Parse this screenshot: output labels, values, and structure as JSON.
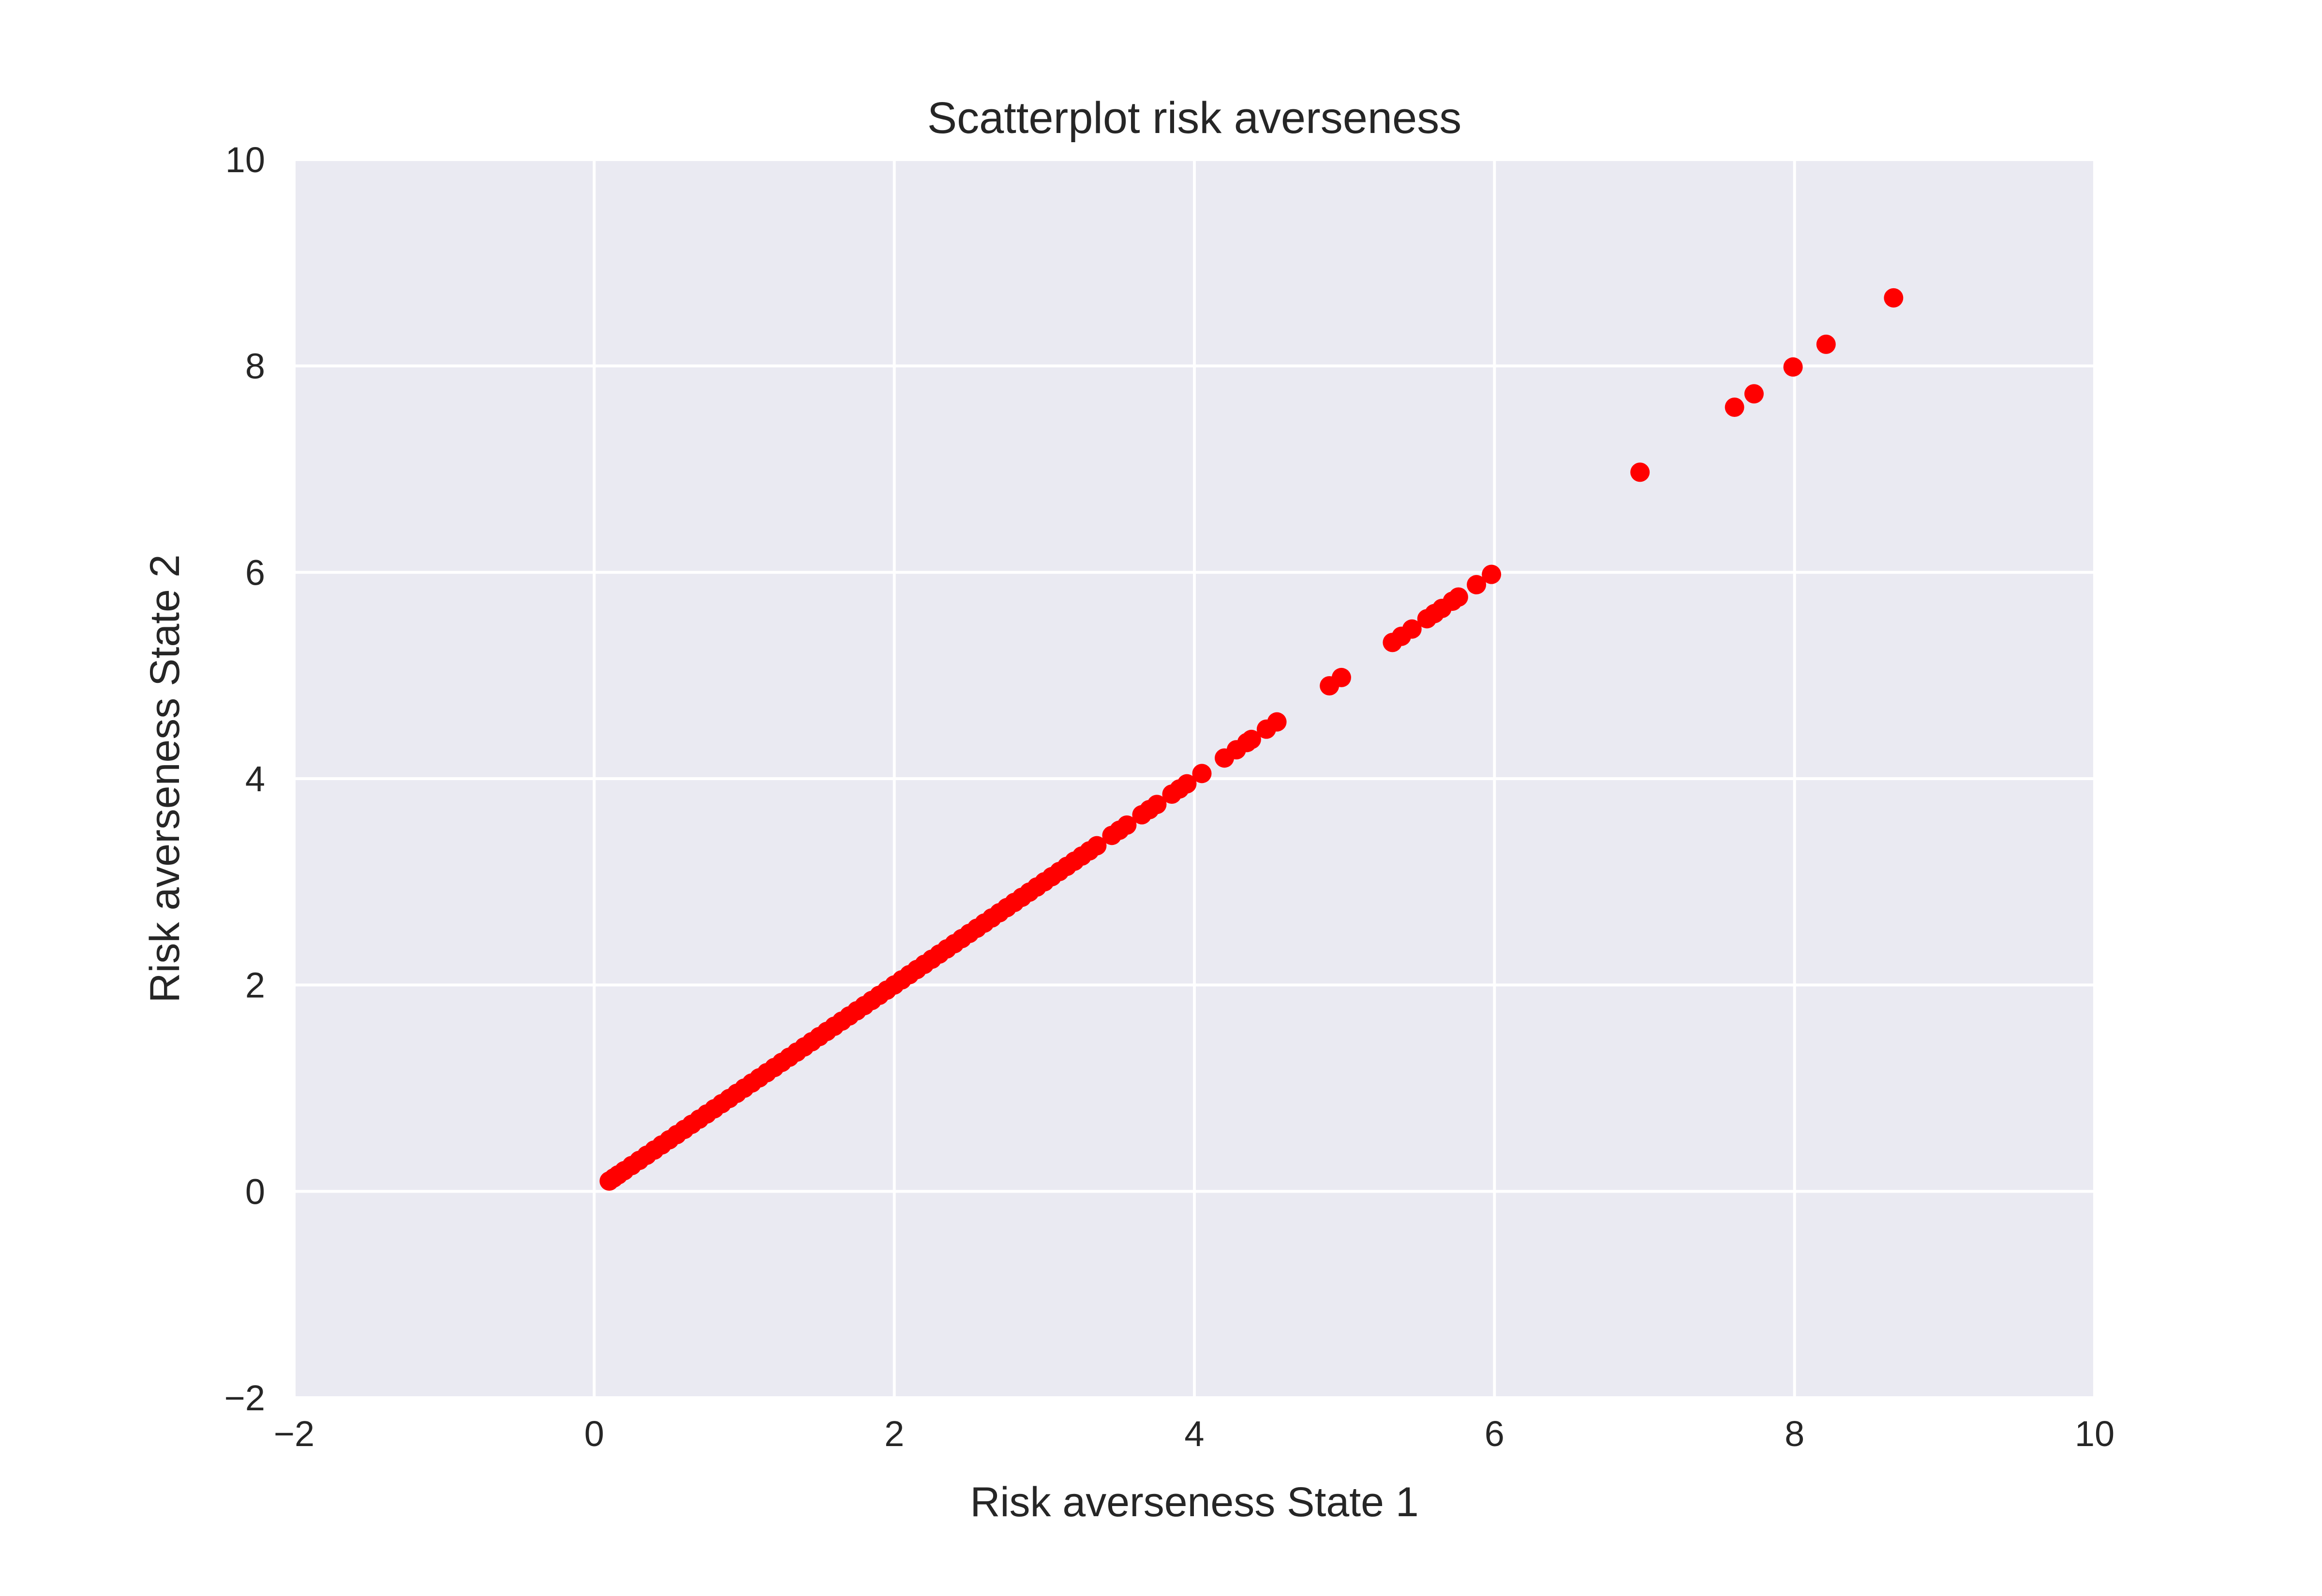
{
  "chart_data": {
    "type": "scatter",
    "title": "Scatterplot risk averseness",
    "xlabel": "Risk averseness State 1",
    "ylabel": "Risk averseness State 2",
    "xlim": [
      -2,
      10
    ],
    "ylim": [
      -2,
      10
    ],
    "xticks": [
      -2,
      0,
      2,
      4,
      6,
      8,
      10
    ],
    "yticks": [
      -2,
      0,
      2,
      4,
      6,
      8,
      10
    ],
    "xtick_labels": [
      "−2",
      "0",
      "2",
      "4",
      "6",
      "8",
      "10"
    ],
    "ytick_labels": [
      "−2",
      "0",
      "2",
      "4",
      "6",
      "8",
      "10"
    ],
    "grid": true,
    "background": "#EAEAF2",
    "grid_color": "#FFFFFF",
    "marker_color": "#FF0000",
    "series": [
      {
        "points": [
          [
            0.1,
            0.1
          ],
          [
            0.13,
            0.13
          ],
          [
            0.16,
            0.16
          ],
          [
            0.2,
            0.2
          ],
          [
            0.25,
            0.25
          ],
          [
            0.3,
            0.3
          ],
          [
            0.35,
            0.35
          ],
          [
            0.4,
            0.4
          ],
          [
            0.45,
            0.45
          ],
          [
            0.5,
            0.5
          ],
          [
            0.55,
            0.55
          ],
          [
            0.6,
            0.6
          ],
          [
            0.65,
            0.65
          ],
          [
            0.7,
            0.7
          ],
          [
            0.75,
            0.75
          ],
          [
            0.8,
            0.8
          ],
          [
            0.85,
            0.85
          ],
          [
            0.9,
            0.9
          ],
          [
            0.95,
            0.95
          ],
          [
            1.0,
            1.0
          ],
          [
            1.05,
            1.05
          ],
          [
            1.1,
            1.1
          ],
          [
            1.15,
            1.15
          ],
          [
            1.2,
            1.2
          ],
          [
            1.25,
            1.25
          ],
          [
            1.3,
            1.3
          ],
          [
            1.35,
            1.35
          ],
          [
            1.4,
            1.4
          ],
          [
            1.45,
            1.45
          ],
          [
            1.5,
            1.5
          ],
          [
            1.55,
            1.55
          ],
          [
            1.6,
            1.6
          ],
          [
            1.65,
            1.65
          ],
          [
            1.7,
            1.7
          ],
          [
            1.75,
            1.75
          ],
          [
            1.8,
            1.8
          ],
          [
            1.85,
            1.85
          ],
          [
            1.9,
            1.9
          ],
          [
            1.95,
            1.95
          ],
          [
            2.0,
            2.0
          ],
          [
            2.05,
            2.05
          ],
          [
            2.1,
            2.1
          ],
          [
            2.15,
            2.15
          ],
          [
            2.2,
            2.2
          ],
          [
            2.25,
            2.25
          ],
          [
            2.3,
            2.3
          ],
          [
            2.35,
            2.35
          ],
          [
            2.4,
            2.4
          ],
          [
            2.45,
            2.45
          ],
          [
            2.5,
            2.5
          ],
          [
            2.55,
            2.55
          ],
          [
            2.6,
            2.6
          ],
          [
            2.65,
            2.65
          ],
          [
            2.7,
            2.7
          ],
          [
            2.75,
            2.75
          ],
          [
            2.8,
            2.8
          ],
          [
            2.85,
            2.85
          ],
          [
            2.9,
            2.9
          ],
          [
            2.95,
            2.95
          ],
          [
            3.0,
            3.0
          ],
          [
            3.05,
            3.05
          ],
          [
            3.1,
            3.1
          ],
          [
            3.15,
            3.15
          ],
          [
            3.2,
            3.2
          ],
          [
            3.25,
            3.25
          ],
          [
            3.3,
            3.3
          ],
          [
            3.35,
            3.35
          ],
          [
            3.45,
            3.45
          ],
          [
            3.5,
            3.5
          ],
          [
            3.55,
            3.55
          ],
          [
            3.65,
            3.65
          ],
          [
            3.7,
            3.7
          ],
          [
            3.75,
            3.75
          ],
          [
            3.85,
            3.85
          ],
          [
            3.9,
            3.9
          ],
          [
            3.95,
            3.95
          ],
          [
            4.05,
            4.05
          ],
          [
            4.2,
            4.2
          ],
          [
            4.28,
            4.28
          ],
          [
            4.35,
            4.35
          ],
          [
            4.38,
            4.38
          ],
          [
            4.48,
            4.48
          ],
          [
            4.55,
            4.55
          ],
          [
            4.9,
            4.9
          ],
          [
            4.98,
            4.98
          ],
          [
            5.32,
            5.32
          ],
          [
            5.38,
            5.38
          ],
          [
            5.45,
            5.45
          ],
          [
            5.55,
            5.55
          ],
          [
            5.6,
            5.6
          ],
          [
            5.65,
            5.65
          ],
          [
            5.72,
            5.72
          ],
          [
            5.76,
            5.76
          ],
          [
            5.88,
            5.88
          ],
          [
            5.98,
            5.98
          ],
          [
            6.97,
            6.97
          ],
          [
            7.6,
            7.6
          ],
          [
            7.73,
            7.73
          ],
          [
            7.99,
            7.99
          ],
          [
            8.21,
            8.21
          ],
          [
            8.66,
            8.66
          ]
        ]
      }
    ]
  }
}
